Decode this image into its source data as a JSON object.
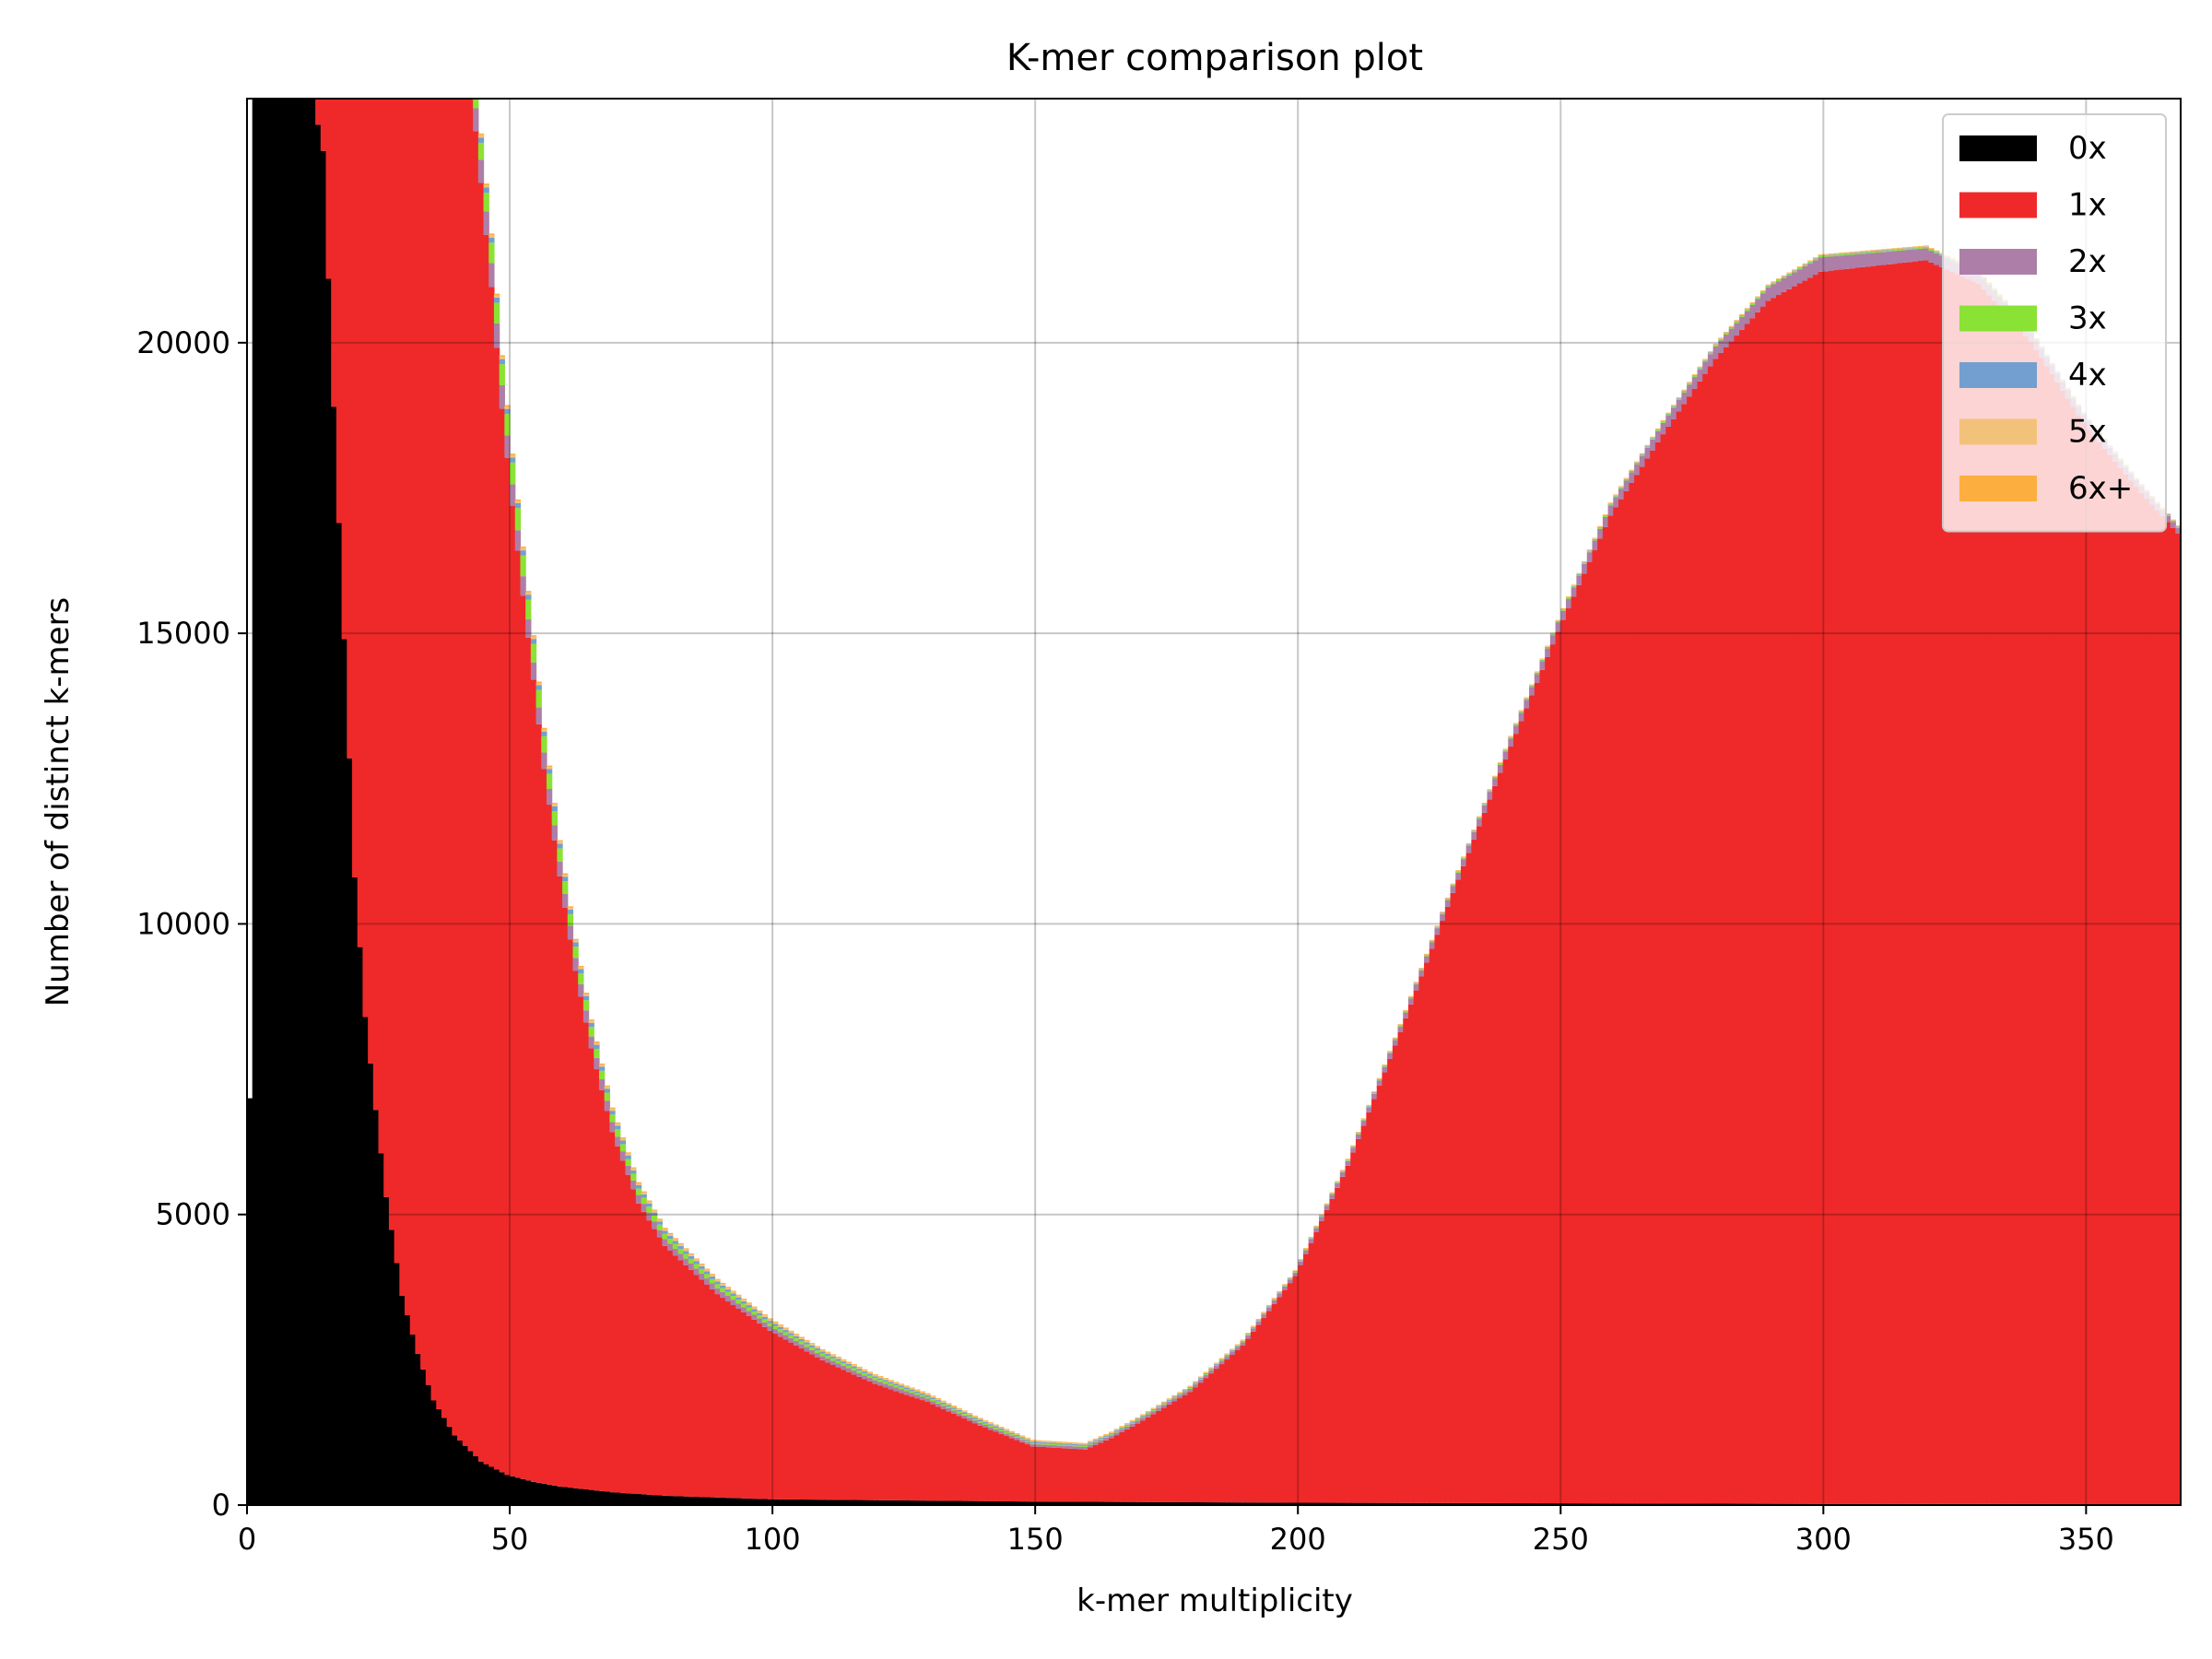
{
  "chart_data": {
    "type": "bar",
    "stacked": true,
    "title": "K-mer comparison plot",
    "xlabel": "k-mer multiplicity",
    "ylabel": "Number of distinct k-mers",
    "xlim": [
      0,
      368
    ],
    "ylim": [
      0,
      24200
    ],
    "xticks": [
      0,
      50,
      100,
      150,
      200,
      250,
      300,
      350
    ],
    "yticks": [
      0,
      5000,
      10000,
      15000,
      20000
    ],
    "grid": true,
    "legend_position": "top-right",
    "series": [
      {
        "name": "0x",
        "color": "#000000"
      },
      {
        "name": "1x",
        "color": "#ef2929"
      },
      {
        "name": "2x",
        "color": "#ad7fa8"
      },
      {
        "name": "3x",
        "color": "#8ae234"
      },
      {
        "name": "4x",
        "color": "#729fcf"
      },
      {
        "name": "5x",
        "color": "#f3c27a"
      },
      {
        "name": "6x+",
        "color": "#fcaf3e"
      }
    ],
    "anchors": {
      "x0": {
        "x": [
          1,
          2,
          5,
          8,
          10,
          13,
          15,
          17,
          19,
          21,
          23,
          25,
          27,
          30,
          33,
          36,
          40,
          45,
          50,
          55,
          60,
          70,
          80,
          100,
          150,
          200,
          250,
          300,
          368
        ],
        "y": [
          7000,
          24200,
          24200,
          24200,
          24200,
          24200,
          23300,
          18900,
          14900,
          10800,
          8400,
          6800,
          5300,
          3600,
          2600,
          1800,
          1200,
          750,
          520,
          400,
          320,
          220,
          160,
          100,
          60,
          40,
          30,
          20,
          15
        ]
      },
      "x1": {
        "x": [
          13,
          14,
          28,
          41,
          43,
          45,
          47,
          49,
          51,
          53,
          55,
          57,
          60,
          63,
          66,
          70,
          75,
          80,
          90,
          100,
          110,
          120,
          130,
          140,
          150,
          160,
          165,
          170,
          180,
          190,
          200,
          210,
          220,
          230,
          240,
          250,
          260,
          270,
          280,
          290,
          300,
          310,
          320,
          330,
          340,
          350,
          360,
          368
        ],
        "y": [
          0,
          24200,
          24200,
          24200,
          23600,
          22000,
          20300,
          18300,
          16700,
          15200,
          13800,
          12300,
          10500,
          8900,
          7600,
          6200,
          5000,
          4300,
          3500,
          2900,
          2400,
          2000,
          1700,
          1300,
          950,
          900,
          1100,
          1350,
          1900,
          2700,
          3900,
          5800,
          8100,
          10500,
          12800,
          15000,
          17000,
          18400,
          19700,
          20700,
          21200,
          21300,
          21400,
          21000,
          20000,
          18600,
          17500,
          16700
        ]
      },
      "x2": {
        "x": [
          1,
          42,
          48,
          55,
          60,
          70,
          80,
          100,
          150,
          200,
          300,
          368
        ],
        "y": [
          0,
          380,
          420,
          300,
          250,
          170,
          120,
          80,
          40,
          60,
          250,
          100
        ]
      },
      "x3": {
        "x": [
          1,
          42,
          47,
          52,
          58,
          62,
          70,
          80,
          100,
          150,
          200,
          300,
          368
        ],
        "y": [
          0,
          200,
          350,
          380,
          260,
          200,
          130,
          90,
          50,
          20,
          10,
          20,
          10
        ]
      },
      "x4": {
        "x": [
          1,
          45,
          60,
          80,
          120,
          200,
          368
        ],
        "y": [
          0,
          90,
          80,
          50,
          30,
          10,
          10
        ]
      },
      "x5": {
        "x": [
          1,
          45,
          60,
          80,
          120,
          200,
          368
        ],
        "y": [
          0,
          40,
          35,
          30,
          20,
          10,
          10
        ]
      },
      "x6": {
        "x": [
          1,
          45,
          60,
          80,
          120,
          200,
          368
        ],
        "y": [
          0,
          30,
          25,
          20,
          15,
          10,
          10
        ]
      }
    }
  }
}
